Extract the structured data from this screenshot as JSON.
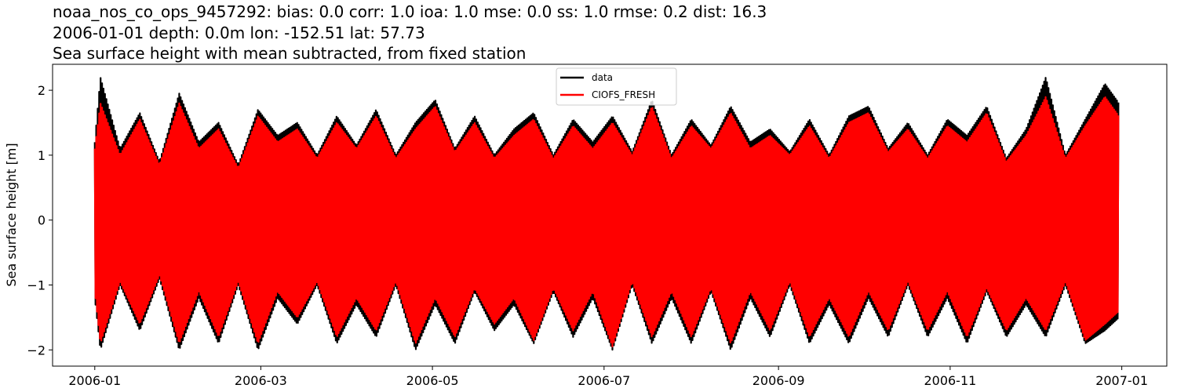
{
  "title_lines": [
    "noaa_nos_co_ops_9457292: bias: 0.0  corr: 1.0  ioa: 1.0  mse: 0.0  ss: 1.0  rmse: 0.2  dist: 16.3",
    "2006-01-01 depth: 0.0m lon: -152.51 lat: 57.73",
    "Sea surface height with mean subtracted, from fixed station"
  ],
  "chart_data": {
    "type": "line",
    "title": "noaa_nos_co_ops_9457292: bias: 0.0  corr: 1.0  ioa: 1.0  mse: 0.0  ss: 1.0  rmse: 0.2  dist: 16.3",
    "xlabel": "",
    "ylabel": "Sea surface height [m]",
    "x_range": [
      "2006-01-01",
      "2006-12-31"
    ],
    "xlim": [
      "2005-12-17",
      "2007-01-17"
    ],
    "ylim": [
      -2.25,
      2.4
    ],
    "x_ticks": [
      "2006-01",
      "2006-03",
      "2006-05",
      "2006-07",
      "2006-09",
      "2006-11",
      "2007-01"
    ],
    "y_ticks": [
      -2,
      -1,
      0,
      1,
      2
    ],
    "grid": false,
    "legend_position": "upper-center",
    "semidiurnal_period_days": 0.5175,
    "series": [
      {
        "name": "data",
        "color": "#000000",
        "envelope_dates": [
          "2006-01-01",
          "2006-01-03",
          "2006-01-10",
          "2006-01-17",
          "2006-01-24",
          "2006-01-31",
          "2006-02-07",
          "2006-02-14",
          "2006-02-21",
          "2006-02-28",
          "2006-03-07",
          "2006-03-14",
          "2006-03-21",
          "2006-03-28",
          "2006-04-04",
          "2006-04-11",
          "2006-04-18",
          "2006-04-25",
          "2006-05-02",
          "2006-05-09",
          "2006-05-16",
          "2006-05-23",
          "2006-05-30",
          "2006-06-06",
          "2006-06-13",
          "2006-06-20",
          "2006-06-27",
          "2006-07-04",
          "2006-07-11",
          "2006-07-18",
          "2006-07-25",
          "2006-08-01",
          "2006-08-08",
          "2006-08-15",
          "2006-08-22",
          "2006-08-29",
          "2006-09-05",
          "2006-09-12",
          "2006-09-19",
          "2006-09-26",
          "2006-10-03",
          "2006-10-10",
          "2006-10-17",
          "2006-10-24",
          "2006-10-31",
          "2006-11-07",
          "2006-11-14",
          "2006-11-21",
          "2006-11-28",
          "2006-12-05",
          "2006-12-12",
          "2006-12-19",
          "2006-12-26",
          "2006-12-31"
        ],
        "envelope_max": [
          1.2,
          2.2,
          1.1,
          1.65,
          0.9,
          1.95,
          1.2,
          1.5,
          0.85,
          1.7,
          1.3,
          1.5,
          1.0,
          1.6,
          1.15,
          1.7,
          1.0,
          1.5,
          1.85,
          1.1,
          1.6,
          1.0,
          1.4,
          1.65,
          1.0,
          1.55,
          1.2,
          1.6,
          1.05,
          1.85,
          1.0,
          1.55,
          1.15,
          1.75,
          1.2,
          1.4,
          1.05,
          1.55,
          1.0,
          1.6,
          1.75,
          1.1,
          1.5,
          1.0,
          1.55,
          1.3,
          1.75,
          0.95,
          1.4,
          2.2,
          1.0,
          1.55,
          2.1,
          1.8
        ],
        "envelope_min": [
          -1.2,
          -2.0,
          -1.0,
          -1.7,
          -0.9,
          -2.0,
          -1.2,
          -1.9,
          -1.0,
          -2.0,
          -1.2,
          -1.6,
          -1.0,
          -1.9,
          -1.3,
          -1.8,
          -1.0,
          -2.0,
          -1.3,
          -1.9,
          -1.1,
          -1.7,
          -1.3,
          -1.9,
          -1.1,
          -1.8,
          -1.2,
          -2.0,
          -1.0,
          -1.9,
          -1.2,
          -1.9,
          -1.1,
          -2.0,
          -1.2,
          -1.8,
          -1.0,
          -1.9,
          -1.3,
          -1.9,
          -1.2,
          -1.8,
          -1.0,
          -1.8,
          -1.2,
          -1.9,
          -1.1,
          -1.8,
          -1.3,
          -1.8,
          -1.0,
          -1.9,
          -1.7,
          -1.5
        ]
      },
      {
        "name": "CIOFS_FRESH",
        "color": "#ff0000",
        "envelope_dates": [
          "2006-01-01",
          "2006-01-03",
          "2006-01-10",
          "2006-01-17",
          "2006-01-24",
          "2006-01-31",
          "2006-02-07",
          "2006-02-14",
          "2006-02-21",
          "2006-02-28",
          "2006-03-07",
          "2006-03-14",
          "2006-03-21",
          "2006-03-28",
          "2006-04-04",
          "2006-04-11",
          "2006-04-18",
          "2006-04-25",
          "2006-05-02",
          "2006-05-09",
          "2006-05-16",
          "2006-05-23",
          "2006-05-30",
          "2006-06-06",
          "2006-06-13",
          "2006-06-20",
          "2006-06-27",
          "2006-07-04",
          "2006-07-11",
          "2006-07-18",
          "2006-07-25",
          "2006-08-01",
          "2006-08-08",
          "2006-08-15",
          "2006-08-22",
          "2006-08-29",
          "2006-09-05",
          "2006-09-12",
          "2006-09-19",
          "2006-09-26",
          "2006-10-03",
          "2006-10-10",
          "2006-10-17",
          "2006-10-24",
          "2006-10-31",
          "2006-11-07",
          "2006-11-14",
          "2006-11-21",
          "2006-11-28",
          "2006-12-05",
          "2006-12-12",
          "2006-12-19",
          "2006-12-26",
          "2006-12-31"
        ],
        "envelope_max": [
          1.1,
          1.8,
          1.0,
          1.55,
          0.85,
          1.8,
          1.1,
          1.4,
          0.8,
          1.6,
          1.2,
          1.4,
          0.95,
          1.5,
          1.1,
          1.6,
          0.95,
          1.4,
          1.75,
          1.05,
          1.5,
          0.95,
          1.3,
          1.55,
          0.95,
          1.45,
          1.1,
          1.5,
          1.0,
          1.75,
          0.95,
          1.45,
          1.1,
          1.65,
          1.1,
          1.3,
          1.0,
          1.45,
          0.95,
          1.5,
          1.65,
          1.05,
          1.4,
          0.95,
          1.45,
          1.2,
          1.65,
          0.9,
          1.3,
          1.9,
          0.95,
          1.45,
          1.9,
          1.6
        ],
        "envelope_min": [
          -1.1,
          -1.9,
          -0.95,
          -1.6,
          -0.85,
          -1.9,
          -1.1,
          -1.8,
          -0.95,
          -1.9,
          -1.1,
          -1.5,
          -0.95,
          -1.8,
          -1.2,
          -1.7,
          -0.95,
          -1.9,
          -1.2,
          -1.8,
          -1.05,
          -1.6,
          -1.2,
          -1.85,
          -1.05,
          -1.7,
          -1.1,
          -1.95,
          -0.95,
          -1.8,
          -1.1,
          -1.8,
          -1.05,
          -1.9,
          -1.1,
          -1.7,
          -0.95,
          -1.8,
          -1.2,
          -1.8,
          -1.1,
          -1.7,
          -0.95,
          -1.7,
          -1.1,
          -1.8,
          -1.05,
          -1.7,
          -1.2,
          -1.7,
          -0.95,
          -1.85,
          -1.6,
          -1.4
        ]
      }
    ]
  }
}
